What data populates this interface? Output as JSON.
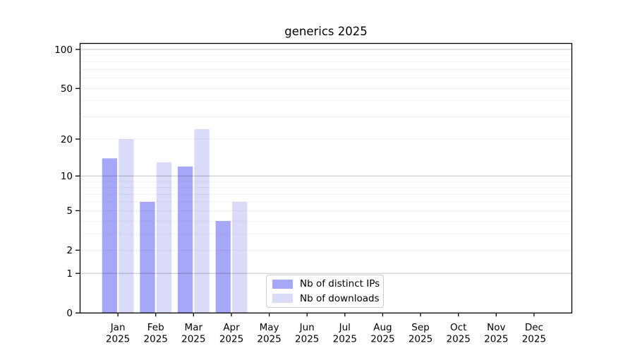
{
  "chart_data": {
    "type": "bar",
    "title": "generics 2025",
    "categories": [
      "Jan",
      "Feb",
      "Mar",
      "Apr",
      "May",
      "Jun",
      "Jul",
      "Aug",
      "Sep",
      "Oct",
      "Nov",
      "Dec"
    ],
    "year": "2025",
    "series": [
      {
        "name": "Nb of distinct IPs",
        "color": "#a7a7f7",
        "values": [
          14,
          6,
          12,
          4,
          null,
          null,
          null,
          null,
          null,
          null,
          null,
          null
        ]
      },
      {
        "name": "Nb of downloads",
        "color": "#dadaf9",
        "values": [
          20,
          13,
          24,
          6,
          null,
          null,
          null,
          null,
          null,
          null,
          null,
          null
        ]
      }
    ],
    "yscale": "log10(1+y)",
    "ylim": [
      0,
      110
    ],
    "yticks": [
      0,
      1,
      2,
      5,
      10,
      20,
      50,
      100
    ],
    "ytick_labels": [
      "0",
      "1",
      "2",
      "5",
      "10",
      "20",
      "50",
      "100"
    ],
    "gridlines_decade": [
      1,
      10,
      100
    ],
    "gridlines_light": [
      2,
      3,
      4,
      5,
      6,
      7,
      8,
      9,
      20,
      30,
      40,
      50,
      60,
      70,
      80,
      90
    ],
    "grid": true,
    "legend_position": "lower center"
  }
}
